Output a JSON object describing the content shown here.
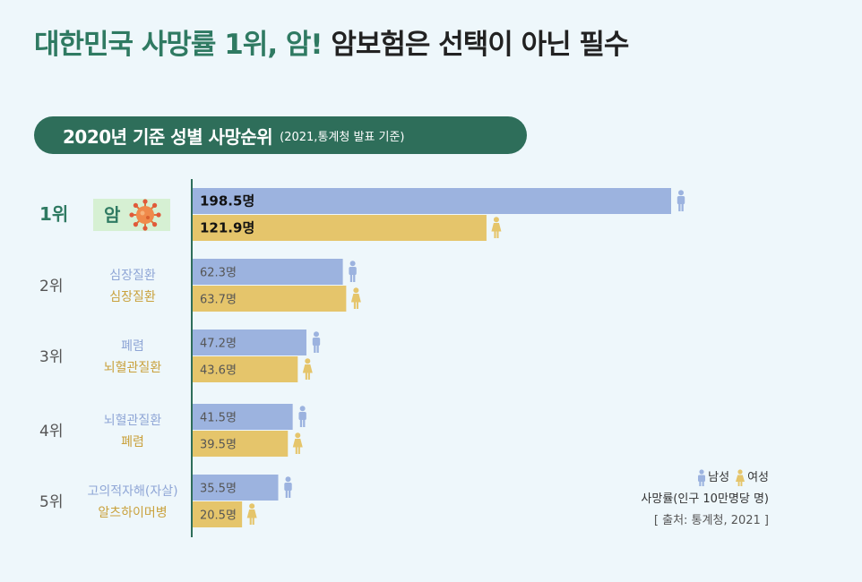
{
  "title": {
    "part1": "대한민국 사망률 1위, 암!",
    "part2": "암보험은 선택이 아닌 필수"
  },
  "subtitle": {
    "main": "2020년 기준 성별 사망순위",
    "note": "(2021,통계청 발표 기준)"
  },
  "legend": {
    "male": "남성",
    "female": "여성",
    "unit": "사망률(인구 10만명당 명)",
    "source": "[ 출처: 통계청, 2021 ]"
  },
  "colors": {
    "male": "#9cb3df",
    "female": "#e5c56b",
    "title_accent": "#2f7a62",
    "axis": "#2e6e5a",
    "rank1_box": "#d6f0d3"
  },
  "chart_data": {
    "type": "bar",
    "orientation": "horizontal",
    "categories": [
      "1위",
      "2위",
      "3위",
      "4위",
      "5위"
    ],
    "series": [
      {
        "name": "남성",
        "causes": [
          "암",
          "심장질환",
          "폐렴",
          "뇌혈관질환",
          "고의적자해(자살)"
        ],
        "values": [
          198.5,
          62.3,
          47.2,
          41.5,
          35.5
        ],
        "labels": [
          "198.5명",
          "62.3명",
          "47.2명",
          "41.5명",
          "35.5명"
        ]
      },
      {
        "name": "여성",
        "causes": [
          "암",
          "심장질환",
          "뇌혈관질환",
          "폐렴",
          "알츠하이머병"
        ],
        "values": [
          121.9,
          63.7,
          43.6,
          39.5,
          20.5
        ],
        "labels": [
          "121.9명",
          "63.7명",
          "43.6명",
          "39.5명",
          "20.5명"
        ]
      }
    ],
    "unit": "사망률(인구 10만명당 명)",
    "xlim": [
      0,
      200
    ],
    "grid": false,
    "legend_position": "bottom-right"
  }
}
